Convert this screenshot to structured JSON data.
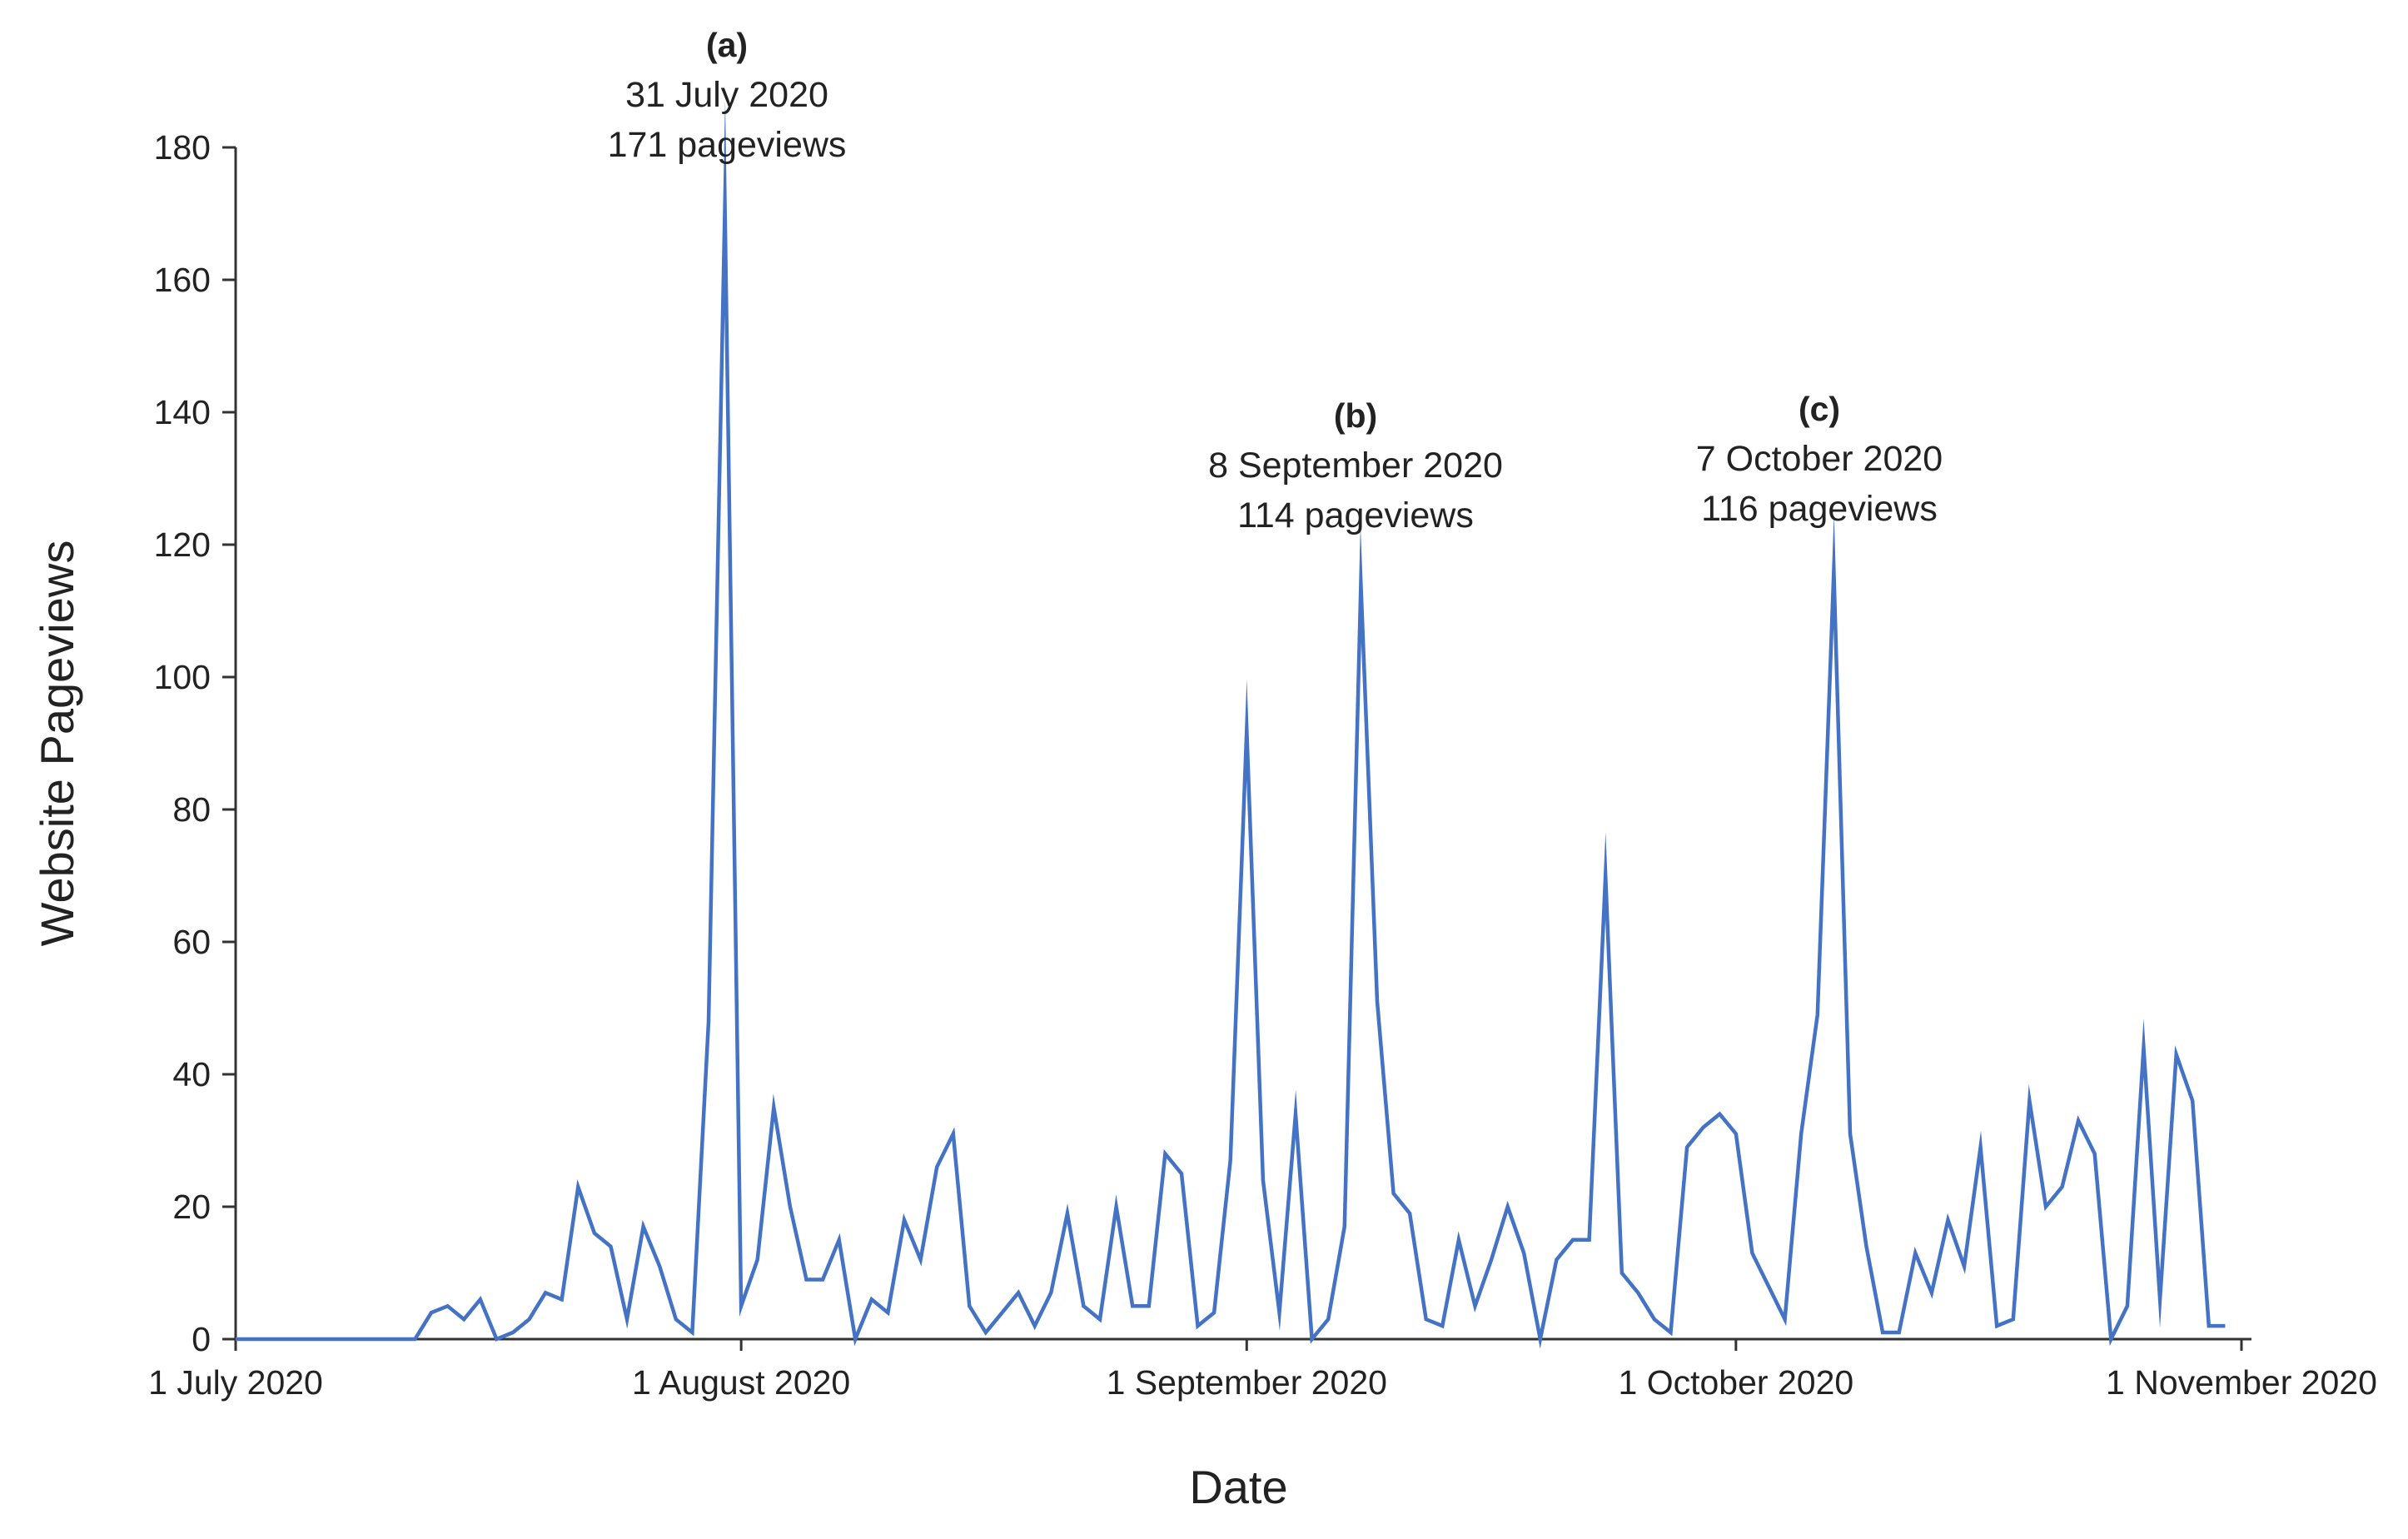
{
  "chart_data": {
    "type": "line",
    "xlabel": "Date",
    "ylabel": "Website Pageviews",
    "ylim": [
      0,
      180
    ],
    "yticks": [
      0,
      20,
      40,
      60,
      80,
      100,
      120,
      140,
      160,
      180
    ],
    "xlim": [
      "2020-07-01",
      "2020-11-01"
    ],
    "xticks": [
      {
        "date": "2020-07-01",
        "label": "1 July 2020"
      },
      {
        "date": "2020-08-01",
        "label": "1 August 2020"
      },
      {
        "date": "2020-09-01",
        "label": "1 September 2020"
      },
      {
        "date": "2020-10-01",
        "label": "1 October 2020"
      },
      {
        "date": "2020-11-01",
        "label": "1 November 2020"
      }
    ],
    "grid": false,
    "legend": "none",
    "colors": {
      "line": "#4472C4",
      "axis": "#333333",
      "text": "#222222"
    },
    "series": [
      {
        "points": [
          [
            "2020-07-01",
            0
          ],
          [
            "2020-07-02",
            0
          ],
          [
            "2020-07-03",
            0
          ],
          [
            "2020-07-04",
            0
          ],
          [
            "2020-07-05",
            0
          ],
          [
            "2020-07-06",
            0
          ],
          [
            "2020-07-07",
            0
          ],
          [
            "2020-07-08",
            0
          ],
          [
            "2020-07-09",
            0
          ],
          [
            "2020-07-10",
            0
          ],
          [
            "2020-07-11",
            0
          ],
          [
            "2020-07-12",
            0
          ],
          [
            "2020-07-13",
            4
          ],
          [
            "2020-07-14",
            5
          ],
          [
            "2020-07-15",
            3
          ],
          [
            "2020-07-16",
            6
          ],
          [
            "2020-07-17",
            0
          ],
          [
            "2020-07-18",
            1
          ],
          [
            "2020-07-19",
            3
          ],
          [
            "2020-07-20",
            7
          ],
          [
            "2020-07-21",
            6
          ],
          [
            "2020-07-22",
            23
          ],
          [
            "2020-07-23",
            16
          ],
          [
            "2020-07-24",
            14
          ],
          [
            "2020-07-25",
            3
          ],
          [
            "2020-07-26",
            17
          ],
          [
            "2020-07-27",
            11
          ],
          [
            "2020-07-28",
            3
          ],
          [
            "2020-07-29",
            1
          ],
          [
            "2020-07-30",
            48
          ],
          [
            "2020-07-31",
            171
          ],
          [
            "2020-08-01",
            5
          ],
          [
            "2020-08-02",
            12
          ],
          [
            "2020-08-03",
            35
          ],
          [
            "2020-08-04",
            20
          ],
          [
            "2020-08-05",
            9
          ],
          [
            "2020-08-06",
            9
          ],
          [
            "2020-08-07",
            15
          ],
          [
            "2020-08-08",
            0
          ],
          [
            "2020-08-09",
            6
          ],
          [
            "2020-08-10",
            4
          ],
          [
            "2020-08-11",
            18
          ],
          [
            "2020-08-12",
            12
          ],
          [
            "2020-08-13",
            26
          ],
          [
            "2020-08-14",
            31
          ],
          [
            "2020-08-15",
            5
          ],
          [
            "2020-08-16",
            1
          ],
          [
            "2020-08-17",
            4
          ],
          [
            "2020-08-18",
            7
          ],
          [
            "2020-08-19",
            2
          ],
          [
            "2020-08-20",
            7
          ],
          [
            "2020-08-21",
            19
          ],
          [
            "2020-08-22",
            5
          ],
          [
            "2020-08-23",
            3
          ],
          [
            "2020-08-24",
            20
          ],
          [
            "2020-08-25",
            5
          ],
          [
            "2020-08-26",
            5
          ],
          [
            "2020-08-27",
            28
          ],
          [
            "2020-08-28",
            25
          ],
          [
            "2020-08-29",
            2
          ],
          [
            "2020-08-30",
            4
          ],
          [
            "2020-08-31",
            27
          ],
          [
            "2020-09-01",
            92
          ],
          [
            "2020-09-02",
            24
          ],
          [
            "2020-09-03",
            4
          ],
          [
            "2020-09-04",
            34
          ],
          [
            "2020-09-05",
            0
          ],
          [
            "2020-09-06",
            3
          ],
          [
            "2020-09-07",
            17
          ],
          [
            "2020-09-08",
            114
          ],
          [
            "2020-09-09",
            51
          ],
          [
            "2020-09-10",
            22
          ],
          [
            "2020-09-11",
            19
          ],
          [
            "2020-09-12",
            3
          ],
          [
            "2020-09-13",
            2
          ],
          [
            "2020-09-14",
            15
          ],
          [
            "2020-09-15",
            5
          ],
          [
            "2020-09-16",
            12
          ],
          [
            "2020-09-17",
            20
          ],
          [
            "2020-09-18",
            13
          ],
          [
            "2020-09-19",
            0
          ],
          [
            "2020-09-20",
            12
          ],
          [
            "2020-09-21",
            15
          ],
          [
            "2020-09-22",
            15
          ],
          [
            "2020-09-23",
            70
          ],
          [
            "2020-09-24",
            10
          ],
          [
            "2020-09-25",
            7
          ],
          [
            "2020-09-26",
            3
          ],
          [
            "2020-09-27",
            1
          ],
          [
            "2020-09-28",
            29
          ],
          [
            "2020-09-29",
            32
          ],
          [
            "2020-09-30",
            34
          ],
          [
            "2020-10-01",
            31
          ],
          [
            "2020-10-02",
            13
          ],
          [
            "2020-10-03",
            8
          ],
          [
            "2020-10-04",
            3
          ],
          [
            "2020-10-05",
            31
          ],
          [
            "2020-10-06",
            49
          ],
          [
            "2020-10-07",
            116
          ],
          [
            "2020-10-08",
            31
          ],
          [
            "2020-10-09",
            14
          ],
          [
            "2020-10-10",
            1
          ],
          [
            "2020-10-11",
            1
          ],
          [
            "2020-10-12",
            13
          ],
          [
            "2020-10-13",
            7
          ],
          [
            "2020-10-14",
            18
          ],
          [
            "2020-10-15",
            11
          ],
          [
            "2020-10-16",
            29
          ],
          [
            "2020-10-17",
            2
          ],
          [
            "2020-10-18",
            3
          ],
          [
            "2020-10-19",
            36
          ],
          [
            "2020-10-20",
            20
          ],
          [
            "2020-10-21",
            23
          ],
          [
            "2020-10-22",
            33
          ],
          [
            "2020-10-23",
            28
          ],
          [
            "2020-10-24",
            0
          ],
          [
            "2020-10-25",
            5
          ],
          [
            "2020-10-26",
            44
          ],
          [
            "2020-10-27",
            6
          ],
          [
            "2020-10-28",
            43
          ],
          [
            "2020-10-29",
            36
          ],
          [
            "2020-10-30",
            2
          ],
          [
            "2020-10-31",
            2
          ]
        ]
      }
    ],
    "annotations": [
      {
        "id": "a",
        "label": "(a)",
        "lines": [
          "31 July 2020",
          "171 pageviews"
        ]
      },
      {
        "id": "b",
        "label": "(b)",
        "lines": [
          "8 September 2020",
          "114 pageviews"
        ]
      },
      {
        "id": "c",
        "label": "(c)",
        "lines": [
          "7 October 2020",
          "116 pageviews"
        ]
      }
    ]
  }
}
